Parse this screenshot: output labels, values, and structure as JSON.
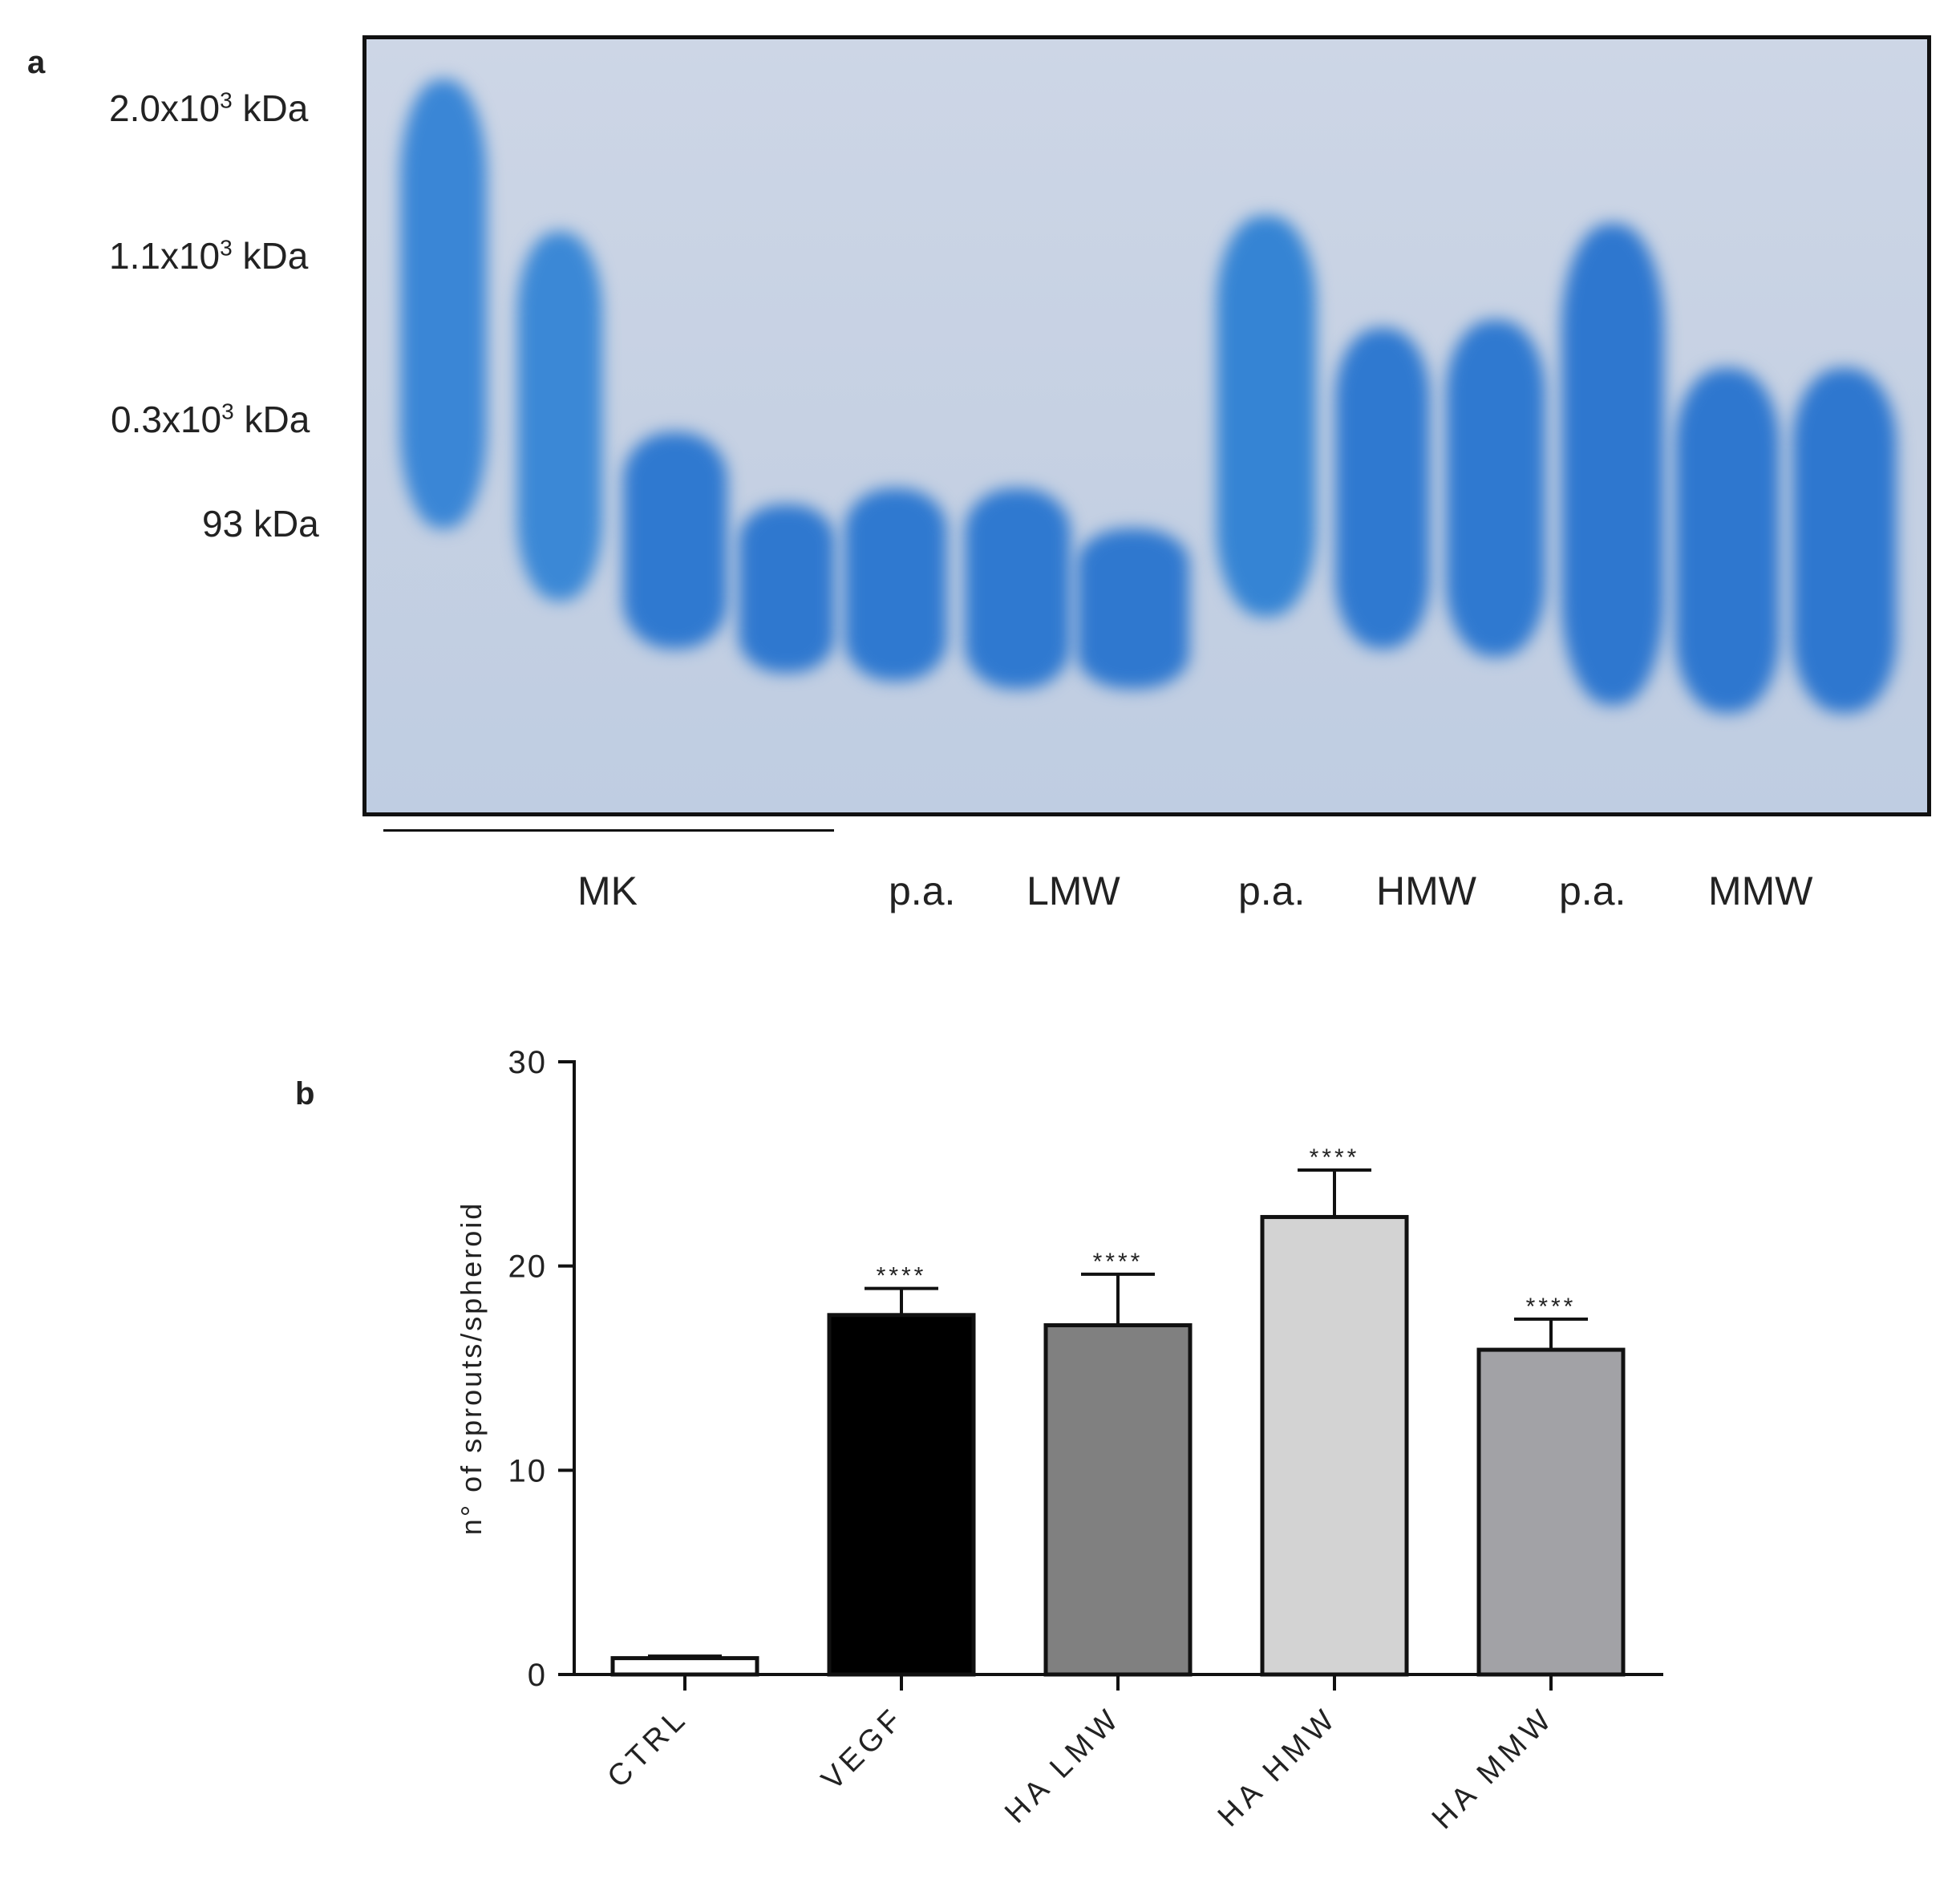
{
  "panel_a": {
    "letter": "a",
    "markers": [
      {
        "base": "2.0x10",
        "exp": "3",
        "unit": "kDa"
      },
      {
        "base": "1.1x10",
        "exp": "3",
        "unit": "kDa"
      },
      {
        "base": "0.3x10",
        "exp": "3",
        "unit": "kDa"
      },
      {
        "base": "93",
        "exp": "",
        "unit": "kDa"
      }
    ],
    "lane_labels": [
      "MK",
      "p.a.",
      "LMW",
      "p.a.",
      "HMW",
      "p.a.",
      "MMW"
    ],
    "band_color": "#2f7fd3",
    "gel_background": "#c9d3e4"
  },
  "panel_b": {
    "letter": "b"
  },
  "chart_data": {
    "type": "bar",
    "categories": [
      "CTRL",
      "VEGF",
      "HA LMW",
      "HA HMW",
      "HA MMW"
    ],
    "values": [
      0.8,
      17.6,
      17.1,
      22.4,
      15.9
    ],
    "error": [
      0.1,
      1.3,
      2.5,
      2.3,
      1.5
    ],
    "significance": [
      "",
      "****",
      "****",
      "****",
      "****"
    ],
    "bar_colors": [
      "#ffffff",
      "#000000",
      "#808080",
      "#d3d3d3",
      "#a2a2a6"
    ],
    "xlabel": "",
    "ylabel": "n° of sprouts/spheroid",
    "ylim": [
      0,
      30
    ],
    "yticks": [
      0,
      10,
      20,
      30
    ],
    "grid": false,
    "legend": "none"
  }
}
